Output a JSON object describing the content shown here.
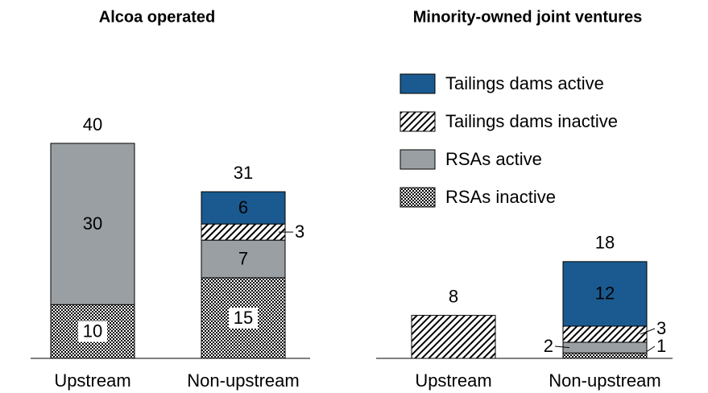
{
  "chart_data": [
    {
      "type": "bar",
      "stacked": true,
      "title": "Alcoa operated",
      "categories": [
        "Upstream",
        "Non-upstream"
      ],
      "ylim": [
        0,
        40
      ],
      "series": [
        {
          "color": "#000000",
          "pattern": "checker",
          "values": [
            10,
            15
          ]
        },
        {
          "color": "#999fa3",
          "values": [
            30,
            7
          ]
        },
        {
          "color": "#000000",
          "pattern": "hatch",
          "values": [
            null,
            3
          ]
        },
        {
          "color": "#1a5a90",
          "values": [
            null,
            6
          ]
        }
      ],
      "totals": [
        40,
        31
      ]
    },
    {
      "type": "bar",
      "stacked": true,
      "title": "Minority-owned joint ventures",
      "categories": [
        "Upstream",
        "Non-upstream"
      ],
      "ylim": [
        0,
        40
      ],
      "series": [
        {
          "name": "RSAs inactive",
          "color": "#000000",
          "pattern": "checker",
          "values": [
            null,
            1
          ]
        },
        {
          "name": "RSAs active",
          "color": "#999fa3",
          "values": [
            null,
            2
          ]
        },
        {
          "name": "Tailings dams inactive",
          "color": "#000000",
          "pattern": "hatch",
          "values": [
            8,
            3
          ]
        },
        {
          "name": "Tailings dams active",
          "color": "#1a5a90",
          "values": [
            null,
            12
          ]
        }
      ],
      "totals": [
        8,
        18
      ],
      "legend": "upper right"
    }
  ]
}
